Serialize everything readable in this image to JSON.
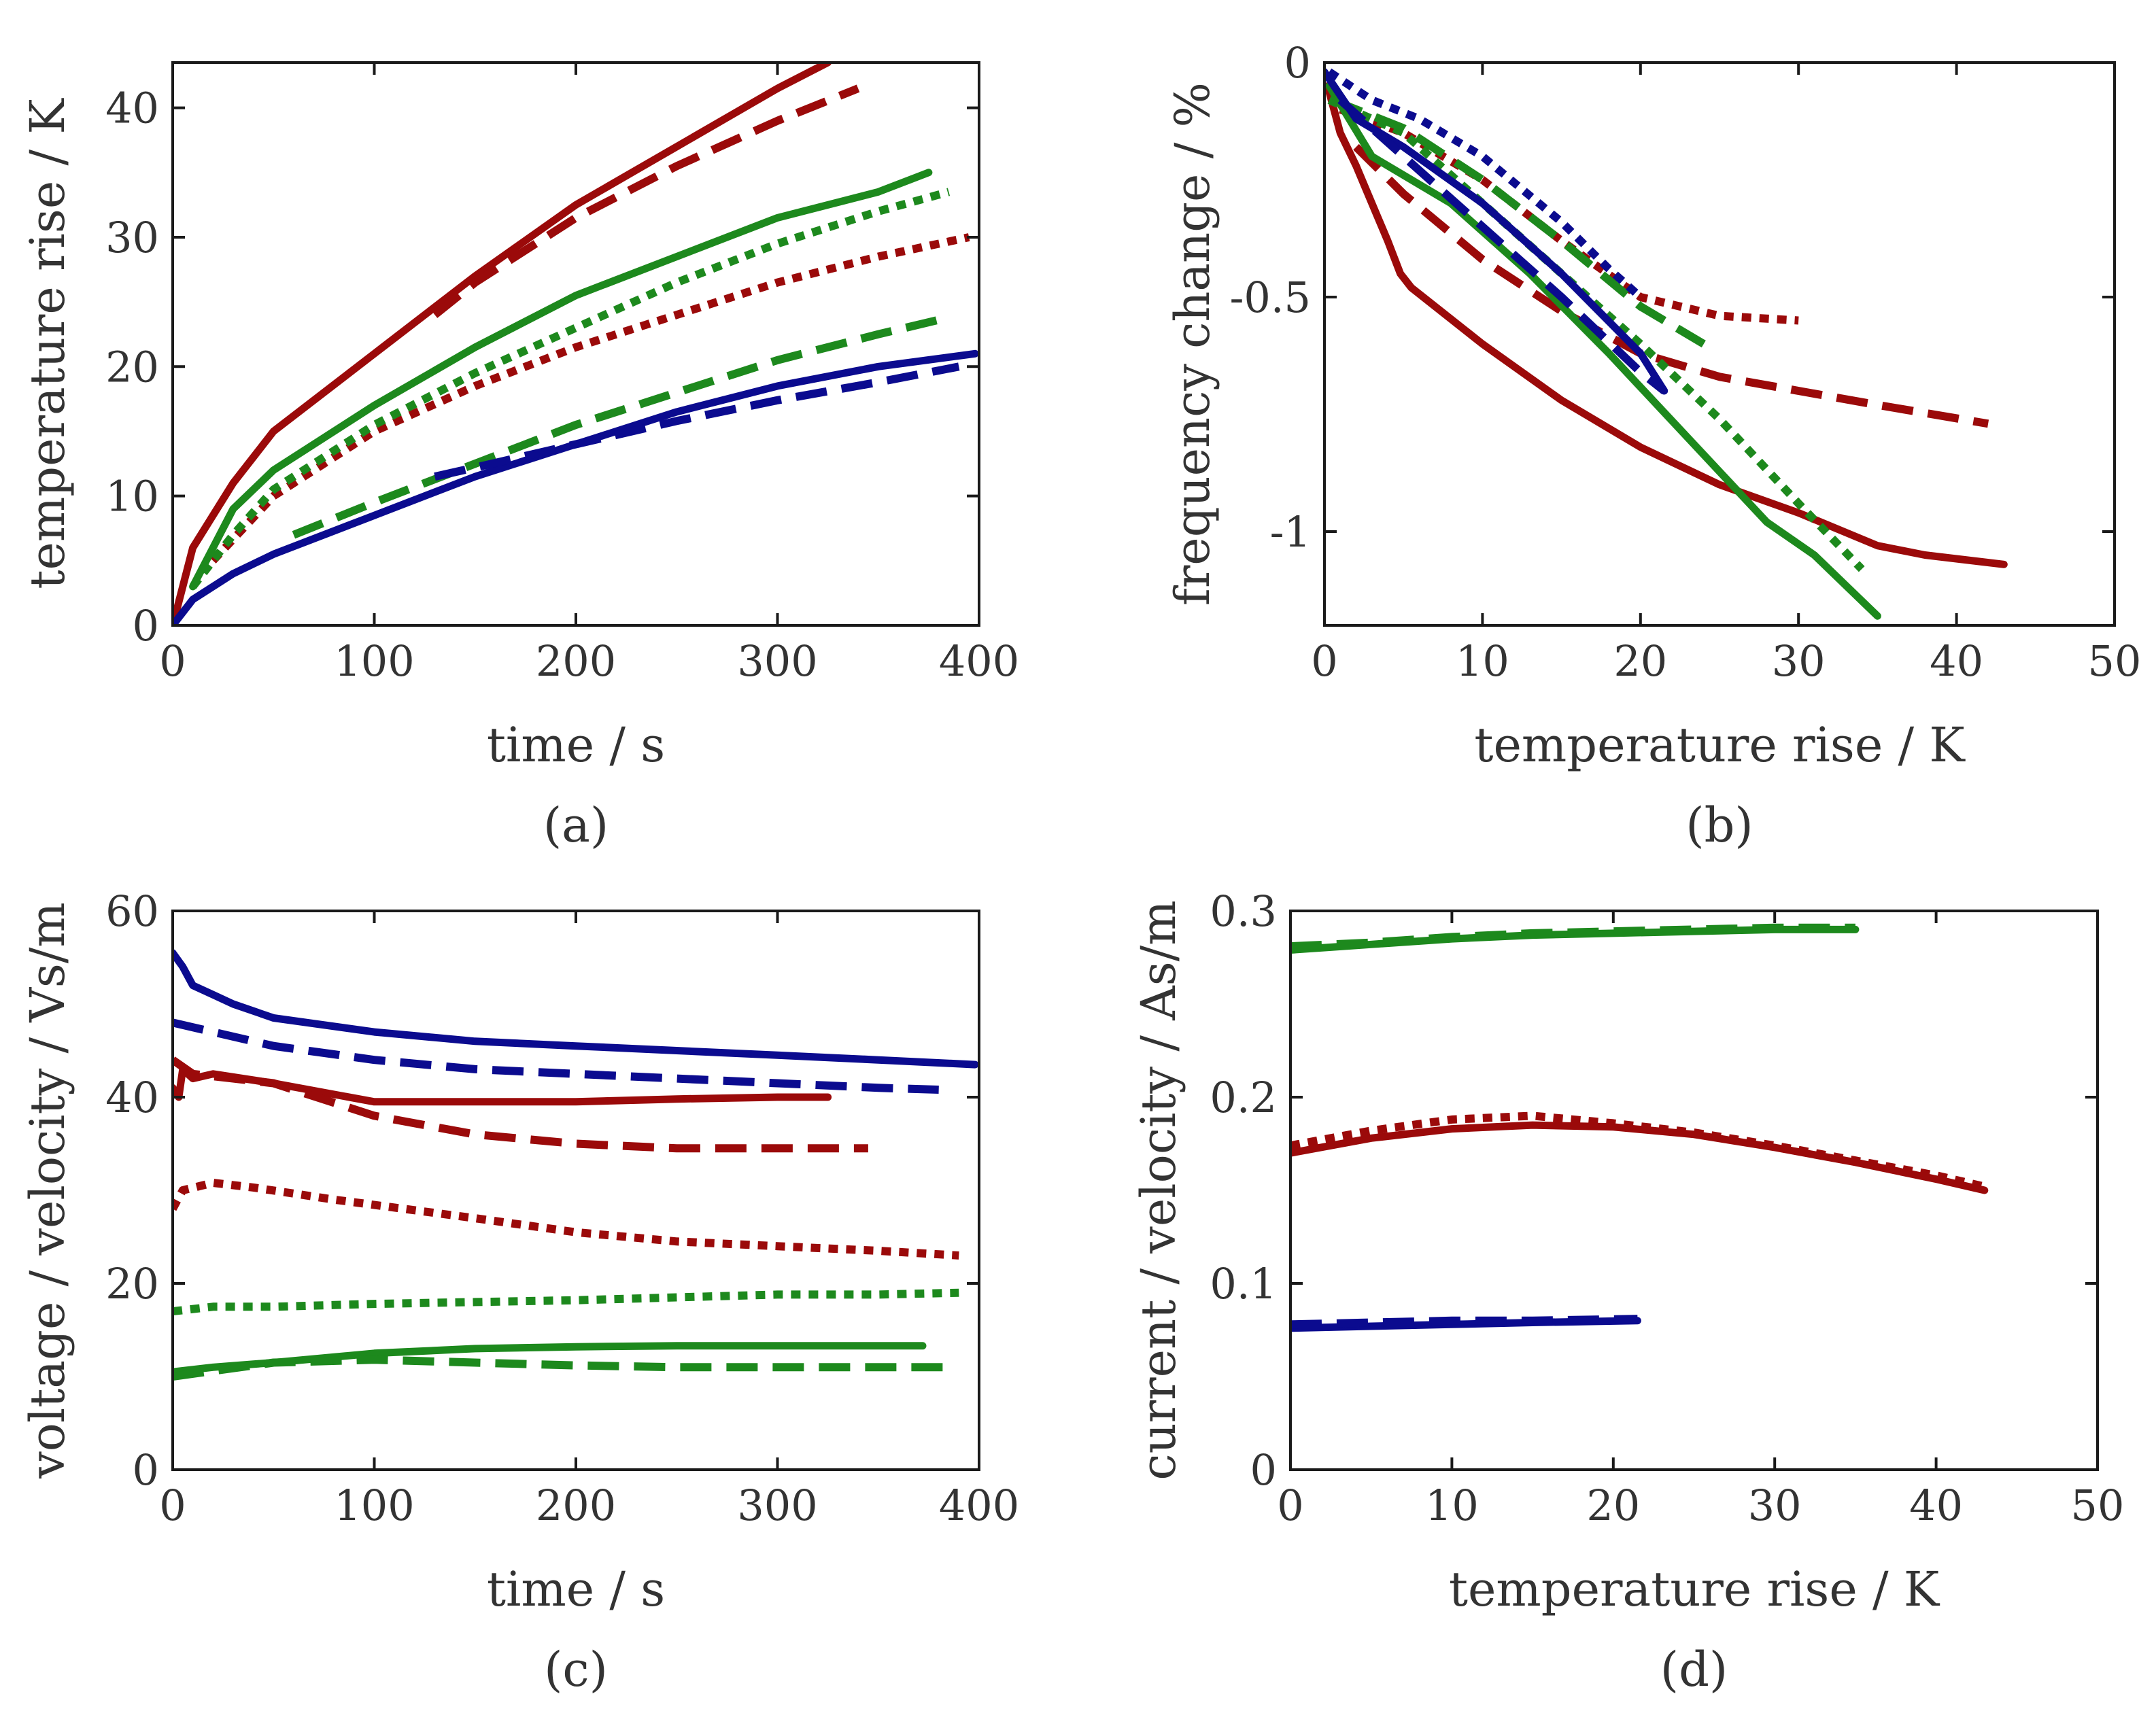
{
  "colors": {
    "red": "#9b0a0a",
    "green": "#1d891d",
    "blue": "#0b0b8f",
    "axis": "#1a1a1a"
  },
  "chart_data": [
    {
      "panel": "a",
      "type": "line",
      "caption": "(a)",
      "xlabel": "time / s",
      "ylabel": "temperature rise / K",
      "xlim": [
        0,
        400
      ],
      "ylim": [
        0,
        43.5
      ],
      "xticks": [
        0,
        100,
        200,
        300,
        400
      ],
      "yticks": [
        0,
        10,
        20,
        30,
        40
      ],
      "xtick_labels": [
        "0",
        "100",
        "200",
        "300",
        "400"
      ],
      "ytick_labels": [
        "0",
        "10",
        "20",
        "30",
        "40"
      ],
      "series": [
        {
          "name": "red solid",
          "color": "red",
          "style": "solid",
          "x": [
            0,
            10,
            30,
            50,
            100,
            150,
            200,
            250,
            300,
            325
          ],
          "y": [
            0,
            6,
            11,
            15,
            21,
            27,
            32.5,
            37,
            41.5,
            43.5
          ]
        },
        {
          "name": "red dashed",
          "color": "red",
          "style": "dashed",
          "x": [
            130,
            150,
            200,
            250,
            300,
            340
          ],
          "y": [
            24,
            26.5,
            31.5,
            35.5,
            39,
            41.5
          ]
        },
        {
          "name": "red dotted",
          "color": "red",
          "style": "dotted",
          "x": [
            20,
            50,
            100,
            150,
            200,
            250,
            300,
            350,
            395
          ],
          "y": [
            5,
            10,
            15,
            18.5,
            21.5,
            24,
            26.5,
            28.5,
            30
          ]
        },
        {
          "name": "green solid",
          "color": "green",
          "style": "solid",
          "x": [
            10,
            30,
            50,
            100,
            150,
            200,
            250,
            300,
            350,
            375
          ],
          "y": [
            3,
            9,
            12,
            17,
            21.5,
            25.5,
            28.5,
            31.5,
            33.5,
            35
          ]
        },
        {
          "name": "green dotted",
          "color": "green",
          "style": "dotted",
          "x": [
            10,
            30,
            50,
            100,
            150,
            200,
            250,
            300,
            350,
            385
          ],
          "y": [
            3,
            7,
            10.5,
            15.5,
            19.5,
            23,
            26.5,
            29.5,
            32,
            33.5
          ]
        },
        {
          "name": "green dashed",
          "color": "green",
          "style": "dashed",
          "x": [
            60,
            100,
            150,
            200,
            250,
            300,
            350,
            385
          ],
          "y": [
            7,
            9.5,
            12.5,
            15.5,
            18,
            20.5,
            22.5,
            23.8
          ]
        },
        {
          "name": "blue solid",
          "color": "blue",
          "style": "solid",
          "x": [
            0,
            10,
            30,
            50,
            100,
            150,
            200,
            250,
            300,
            350,
            398
          ],
          "y": [
            0,
            2,
            4,
            5.5,
            8.5,
            11.5,
            14,
            16.5,
            18.5,
            20,
            21
          ]
        },
        {
          "name": "blue dashed",
          "color": "blue",
          "style": "dashed",
          "x": [
            130,
            150,
            200,
            250,
            300,
            350,
            390
          ],
          "y": [
            11.5,
            12.2,
            14,
            15.8,
            17.4,
            18.8,
            20
          ]
        }
      ]
    },
    {
      "panel": "b",
      "type": "line",
      "caption": "(b)",
      "xlabel": "temperature rise / K",
      "ylabel": "frequency change / %",
      "xlim": [
        0,
        50
      ],
      "ylim": [
        -1.2,
        0
      ],
      "xticks": [
        0,
        10,
        20,
        30,
        40,
        50
      ],
      "yticks": [
        -1,
        -0.5,
        0
      ],
      "xtick_labels": [
        "0",
        "10",
        "20",
        "30",
        "40",
        "50"
      ],
      "ytick_labels": [
        "-1",
        "-0.5",
        "0"
      ],
      "series": [
        {
          "name": "red solid",
          "color": "red",
          "style": "solid",
          "x": [
            0.2,
            1,
            2,
            3,
            4,
            4.8,
            5.5,
            10,
            15,
            20,
            25,
            30,
            35,
            38,
            43
          ],
          "y": [
            -0.05,
            -0.15,
            -0.22,
            -0.3,
            -0.38,
            -0.45,
            -0.48,
            -0.6,
            -0.72,
            -0.82,
            -0.9,
            -0.96,
            -1.03,
            -1.05,
            -1.07
          ]
        },
        {
          "name": "red dashed",
          "color": "red",
          "style": "dashed",
          "x": [
            2,
            5,
            10,
            15,
            20,
            25,
            30,
            35,
            42
          ],
          "y": [
            -0.18,
            -0.28,
            -0.42,
            -0.53,
            -0.62,
            -0.67,
            -0.7,
            -0.73,
            -0.77
          ]
        },
        {
          "name": "red dotted",
          "color": "red",
          "style": "dotted",
          "x": [
            1,
            5,
            10,
            15,
            20,
            25,
            30
          ],
          "y": [
            -0.1,
            -0.15,
            -0.25,
            -0.38,
            -0.5,
            -0.54,
            -0.55
          ]
        },
        {
          "name": "green solid",
          "color": "green",
          "style": "solid",
          "x": [
            0.3,
            3,
            8,
            13,
            18,
            23,
            28,
            31,
            35
          ],
          "y": [
            -0.05,
            -0.2,
            -0.3,
            -0.45,
            -0.62,
            -0.8,
            -0.98,
            -1.05,
            -1.18
          ]
        },
        {
          "name": "green dotted",
          "color": "green",
          "style": "dotted",
          "x": [
            0.3,
            5,
            10,
            15,
            20,
            25,
            30,
            34
          ],
          "y": [
            -0.08,
            -0.15,
            -0.3,
            -0.45,
            -0.6,
            -0.76,
            -0.94,
            -1.08
          ]
        },
        {
          "name": "green dashed",
          "color": "green",
          "style": "dashed",
          "x": [
            0.5,
            5,
            10,
            15,
            20,
            24
          ],
          "y": [
            -0.08,
            -0.14,
            -0.25,
            -0.38,
            -0.52,
            -0.6
          ]
        },
        {
          "name": "blue solid",
          "color": "blue",
          "style": "solid",
          "x": [
            0,
            2,
            5,
            10,
            15,
            20,
            21.5
          ],
          "y": [
            -0.02,
            -0.12,
            -0.18,
            -0.3,
            -0.45,
            -0.62,
            -0.7
          ]
        },
        {
          "name": "blue dotted",
          "color": "blue",
          "style": "dotted",
          "x": [
            0.3,
            3,
            6,
            10,
            15,
            18,
            20
          ],
          "y": [
            -0.02,
            -0.08,
            -0.12,
            -0.2,
            -0.34,
            -0.44,
            -0.5
          ]
        },
        {
          "name": "blue dashed",
          "color": "blue",
          "style": "dashed",
          "x": [
            1,
            5,
            10,
            15,
            20,
            21.5
          ],
          "y": [
            -0.08,
            -0.2,
            -0.35,
            -0.5,
            -0.66,
            -0.7
          ]
        }
      ]
    },
    {
      "panel": "c",
      "type": "line",
      "caption": "(c)",
      "xlabel": "time / s",
      "ylabel": "voltage / velocity / Vs/m",
      "xlim": [
        0,
        400
      ],
      "ylim": [
        0,
        60
      ],
      "xticks": [
        0,
        100,
        200,
        300,
        400
      ],
      "yticks": [
        0,
        20,
        40,
        60
      ],
      "xtick_labels": [
        "0",
        "100",
        "200",
        "300",
        "400"
      ],
      "ytick_labels": [
        "0",
        "20",
        "40",
        "60"
      ],
      "series": [
        {
          "name": "blue solid",
          "color": "blue",
          "style": "solid",
          "x": [
            0,
            5,
            10,
            20,
            30,
            50,
            100,
            150,
            200,
            250,
            300,
            350,
            398
          ],
          "y": [
            55.5,
            54,
            52,
            51,
            50,
            48.5,
            47,
            46,
            45.5,
            45,
            44.5,
            44,
            43.5
          ]
        },
        {
          "name": "blue dashed",
          "color": "blue",
          "style": "dashed",
          "x": [
            0,
            20,
            50,
            100,
            150,
            200,
            250,
            300,
            350,
            380
          ],
          "y": [
            48,
            47,
            45.5,
            44,
            43,
            42.5,
            42,
            41.5,
            41,
            40.8
          ]
        },
        {
          "name": "red solid",
          "color": "red",
          "style": "solid",
          "x": [
            0,
            3,
            5,
            10,
            20,
            50,
            100,
            150,
            200,
            250,
            300,
            325
          ],
          "y": [
            41,
            40,
            43,
            42,
            42.5,
            41.5,
            39.5,
            39.5,
            39.5,
            39.8,
            40,
            40
          ]
        },
        {
          "name": "red dashed",
          "color": "red",
          "style": "dashed",
          "x": [
            0,
            10,
            30,
            50,
            100,
            150,
            200,
            250,
            300,
            345
          ],
          "y": [
            44,
            42.5,
            42,
            41.5,
            38,
            36,
            35,
            34.5,
            34.5,
            34.5
          ]
        },
        {
          "name": "red dotted",
          "color": "red",
          "style": "dotted",
          "x": [
            0,
            5,
            20,
            40,
            80,
            150,
            200,
            250,
            300,
            350,
            390
          ],
          "y": [
            28,
            30,
            30.8,
            30.3,
            29,
            27,
            25.5,
            24.5,
            24,
            23.5,
            23
          ]
        },
        {
          "name": "green dotted",
          "color": "green",
          "style": "dotted",
          "x": [
            0,
            20,
            50,
            100,
            150,
            200,
            250,
            300,
            350,
            390
          ],
          "y": [
            17,
            17.5,
            17.5,
            17.8,
            18,
            18.2,
            18.5,
            18.8,
            18.8,
            19
          ]
        },
        {
          "name": "green solid",
          "color": "green",
          "style": "solid",
          "x": [
            0,
            20,
            50,
            100,
            150,
            200,
            250,
            300,
            350,
            372
          ],
          "y": [
            10.5,
            11,
            11.5,
            12.5,
            13,
            13.2,
            13.3,
            13.3,
            13.3,
            13.3
          ]
        },
        {
          "name": "green dashed",
          "color": "green",
          "style": "dashed",
          "x": [
            0,
            50,
            100,
            150,
            200,
            250,
            300,
            350,
            388
          ],
          "y": [
            10,
            11.5,
            11.8,
            11.5,
            11.2,
            11,
            11,
            11,
            11
          ]
        }
      ]
    },
    {
      "panel": "d",
      "type": "line",
      "caption": "(d)",
      "xlabel": "temperature rise / K",
      "ylabel": "current / velocity / As/m",
      "xlim": [
        0,
        50
      ],
      "ylim": [
        0,
        0.3
      ],
      "xticks": [
        0,
        10,
        20,
        30,
        40,
        50
      ],
      "yticks": [
        0,
        0.1,
        0.2,
        0.3
      ],
      "xtick_labels": [
        "0",
        "10",
        "20",
        "30",
        "40",
        "50"
      ],
      "ytick_labels": [
        "0",
        "0.1",
        "0.2",
        "0.3"
      ],
      "series": [
        {
          "name": "green solid",
          "color": "green",
          "style": "solid",
          "x": [
            0,
            5,
            10,
            15,
            20,
            25,
            30,
            35
          ],
          "y": [
            0.279,
            0.282,
            0.285,
            0.287,
            0.288,
            0.289,
            0.29,
            0.29
          ]
        },
        {
          "name": "green dashed",
          "color": "green",
          "style": "dashed",
          "x": [
            0,
            5,
            10,
            15,
            20,
            25,
            30,
            35
          ],
          "y": [
            0.281,
            0.283,
            0.286,
            0.288,
            0.289,
            0.29,
            0.291,
            0.291
          ]
        },
        {
          "name": "red solid",
          "color": "red",
          "style": "solid",
          "x": [
            0,
            5,
            10,
            15,
            20,
            25,
            30,
            35,
            40,
            43
          ],
          "y": [
            0.17,
            0.178,
            0.183,
            0.185,
            0.184,
            0.18,
            0.173,
            0.165,
            0.156,
            0.15
          ]
        },
        {
          "name": "red dotted",
          "color": "red",
          "style": "dotted",
          "x": [
            0,
            5,
            10,
            15,
            20,
            25,
            30,
            35,
            40,
            43
          ],
          "y": [
            0.174,
            0.182,
            0.188,
            0.19,
            0.186,
            0.181,
            0.174,
            0.166,
            0.158,
            0.152
          ]
        },
        {
          "name": "blue solid",
          "color": "blue",
          "style": "solid",
          "x": [
            0,
            5,
            10,
            15,
            21.5
          ],
          "y": [
            0.076,
            0.077,
            0.078,
            0.079,
            0.08
          ]
        },
        {
          "name": "blue dashed",
          "color": "blue",
          "style": "dashed",
          "x": [
            0,
            5,
            10,
            15,
            21.5
          ],
          "y": [
            0.078,
            0.079,
            0.08,
            0.08,
            0.081
          ]
        }
      ]
    }
  ]
}
